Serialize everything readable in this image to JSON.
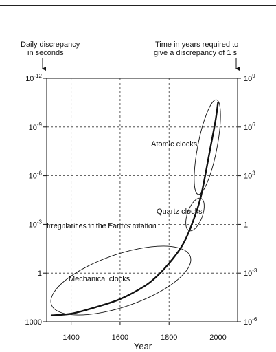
{
  "chart_data": {
    "type": "line",
    "xlabel": "Year",
    "left_axis_title": [
      "Daily discrepancy",
      "in seconds"
    ],
    "right_axis_title": [
      "Time in years required to",
      "give a discrepancy of 1 s"
    ],
    "x_ticks": [
      1400,
      1600,
      1800,
      2000
    ],
    "xlim": [
      1300,
      2080
    ],
    "left_ticks": [
      {
        "base": "10",
        "exp": "-12",
        "log": -12
      },
      {
        "base": "10",
        "exp": "-9",
        "log": -9
      },
      {
        "base": "10",
        "exp": "-6",
        "log": -6
      },
      {
        "base": "10",
        "exp": "-3",
        "log": -3
      },
      {
        "base": "1",
        "exp": "",
        "log": 0
      },
      {
        "base": "1000",
        "exp": "",
        "log": 3
      }
    ],
    "right_ticks": [
      {
        "base": "10",
        "exp": "9",
        "log": -12
      },
      {
        "base": "10",
        "exp": "6",
        "log": -9
      },
      {
        "base": "10",
        "exp": "3",
        "log": -6
      },
      {
        "base": "1",
        "exp": "",
        "log": -3
      },
      {
        "base": "10",
        "exp": "-3",
        "log": 0
      },
      {
        "base": "10",
        "exp": "-6",
        "log": 3
      }
    ],
    "ylim_log": [
      -12,
      3
    ],
    "y_inverted": true,
    "grid": true,
    "series": [
      {
        "x": [
          1320,
          1400,
          1500,
          1600,
          1700,
          1750,
          1800,
          1850,
          1880,
          1910,
          1930,
          1950,
          1970,
          1990,
          2000
        ],
        "y_log": [
          2.6,
          2.5,
          2.1,
          1.6,
          0.8,
          0.2,
          -0.6,
          -1.6,
          -2.5,
          -3.7,
          -4.7,
          -6.2,
          -7.8,
          -9.4,
          -10.5
        ]
      }
    ],
    "regions": [
      {
        "label": "Mechanical clocks",
        "cx": 1580,
        "cy_log": 1.3
      },
      {
        "label": "Quartz clocks",
        "cx": 1905,
        "cy_log": -3.4
      },
      {
        "label": "Atomic clocks",
        "cx": 1970,
        "cy_log": -7.7
      }
    ],
    "reference_line": {
      "label": "Irregularities in the Earth's rotation",
      "y_log": -3
    }
  }
}
